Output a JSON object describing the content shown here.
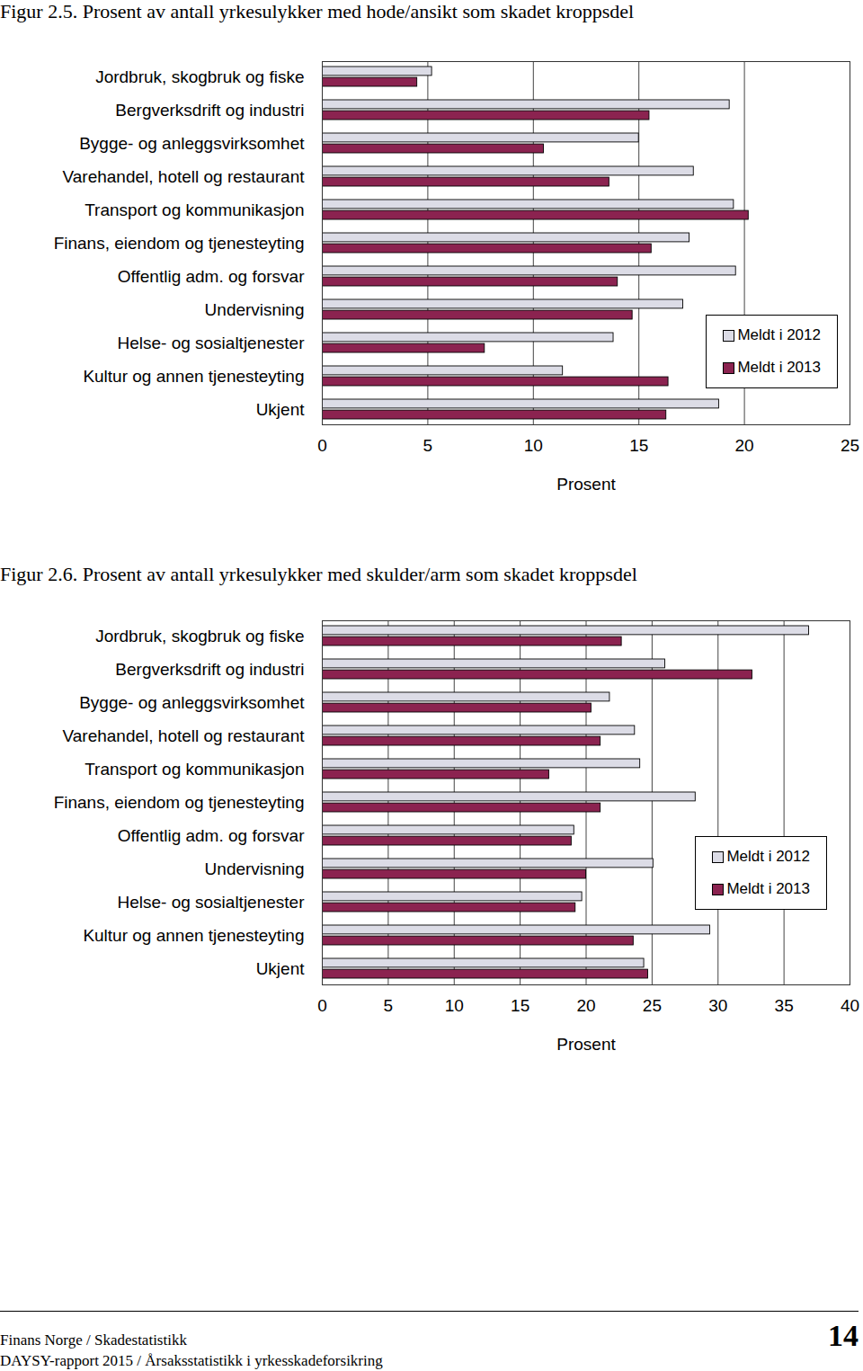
{
  "chart_data": [
    {
      "type": "bar",
      "orientation": "horizontal",
      "title": "Figur 2.5. Prosent av antall yrkesulykker med hode/ansikt som skadet kroppsdel",
      "categories": [
        "Jordbruk, skogbruk og fiske",
        "Bergverksdrift og industri",
        "Bygge- og anleggsvirksomhet",
        "Varehandel, hotell og restaurant",
        "Transport og kommunikasjon",
        "Finans, eiendom og tjenesteyting",
        "Offentlig adm. og forsvar",
        "Undervisning",
        "Helse- og sosialtjenester",
        "Kultur og annen tjenesteyting",
        "Ukjent"
      ],
      "series": [
        {
          "name": "Meldt i 2012",
          "color": "#dcdce6",
          "values": [
            5.2,
            19.3,
            15.0,
            17.6,
            19.5,
            17.4,
            19.6,
            17.1,
            13.8,
            11.4,
            18.8
          ]
        },
        {
          "name": "Meldt i 2013",
          "color": "#8b2350",
          "values": [
            4.5,
            15.5,
            10.5,
            13.6,
            20.2,
            15.6,
            14.0,
            14.7,
            7.7,
            16.4,
            16.3
          ]
        }
      ],
      "xlabel": "Prosent",
      "xlim": [
        0,
        25
      ],
      "xticks": [
        0,
        5,
        10,
        15,
        20,
        25
      ],
      "grid": true,
      "legend": "lower right"
    },
    {
      "type": "bar",
      "orientation": "horizontal",
      "title": "Figur 2.6. Prosent av antall yrkesulykker med skulder/arm som skadet kroppsdel",
      "categories": [
        "Jordbruk, skogbruk og fiske",
        "Bergverksdrift og industri",
        "Bygge- og anleggsvirksomhet",
        "Varehandel, hotell og restaurant",
        "Transport og kommunikasjon",
        "Finans, eiendom og tjenesteyting",
        "Offentlig adm. og forsvar",
        "Undervisning",
        "Helse- og sosialtjenester",
        "Kultur og annen tjenesteyting",
        "Ukjent"
      ],
      "series": [
        {
          "name": "Meldt i 2012",
          "color": "#dcdce6",
          "values": [
            36.9,
            26.0,
            21.8,
            23.7,
            24.1,
            28.3,
            19.1,
            25.1,
            19.7,
            29.4,
            24.4
          ]
        },
        {
          "name": "Meldt i 2013",
          "color": "#8b2350",
          "values": [
            22.7,
            32.6,
            20.4,
            21.1,
            17.2,
            21.1,
            18.9,
            20.0,
            19.2,
            23.6,
            24.7
          ]
        }
      ],
      "xlabel": "Prosent",
      "xlim": [
        0,
        40
      ],
      "xticks": [
        0,
        5,
        10,
        15,
        20,
        25,
        30,
        35,
        40
      ],
      "grid": true,
      "legend": "right"
    }
  ],
  "page_footer": {
    "left_lines": [
      "Finans Norge / Skadestatistikk",
      "DAYSY-rapport 2015 / Årsaksstatistikk i yrkesskadeforsikring"
    ],
    "page_number": "14"
  }
}
